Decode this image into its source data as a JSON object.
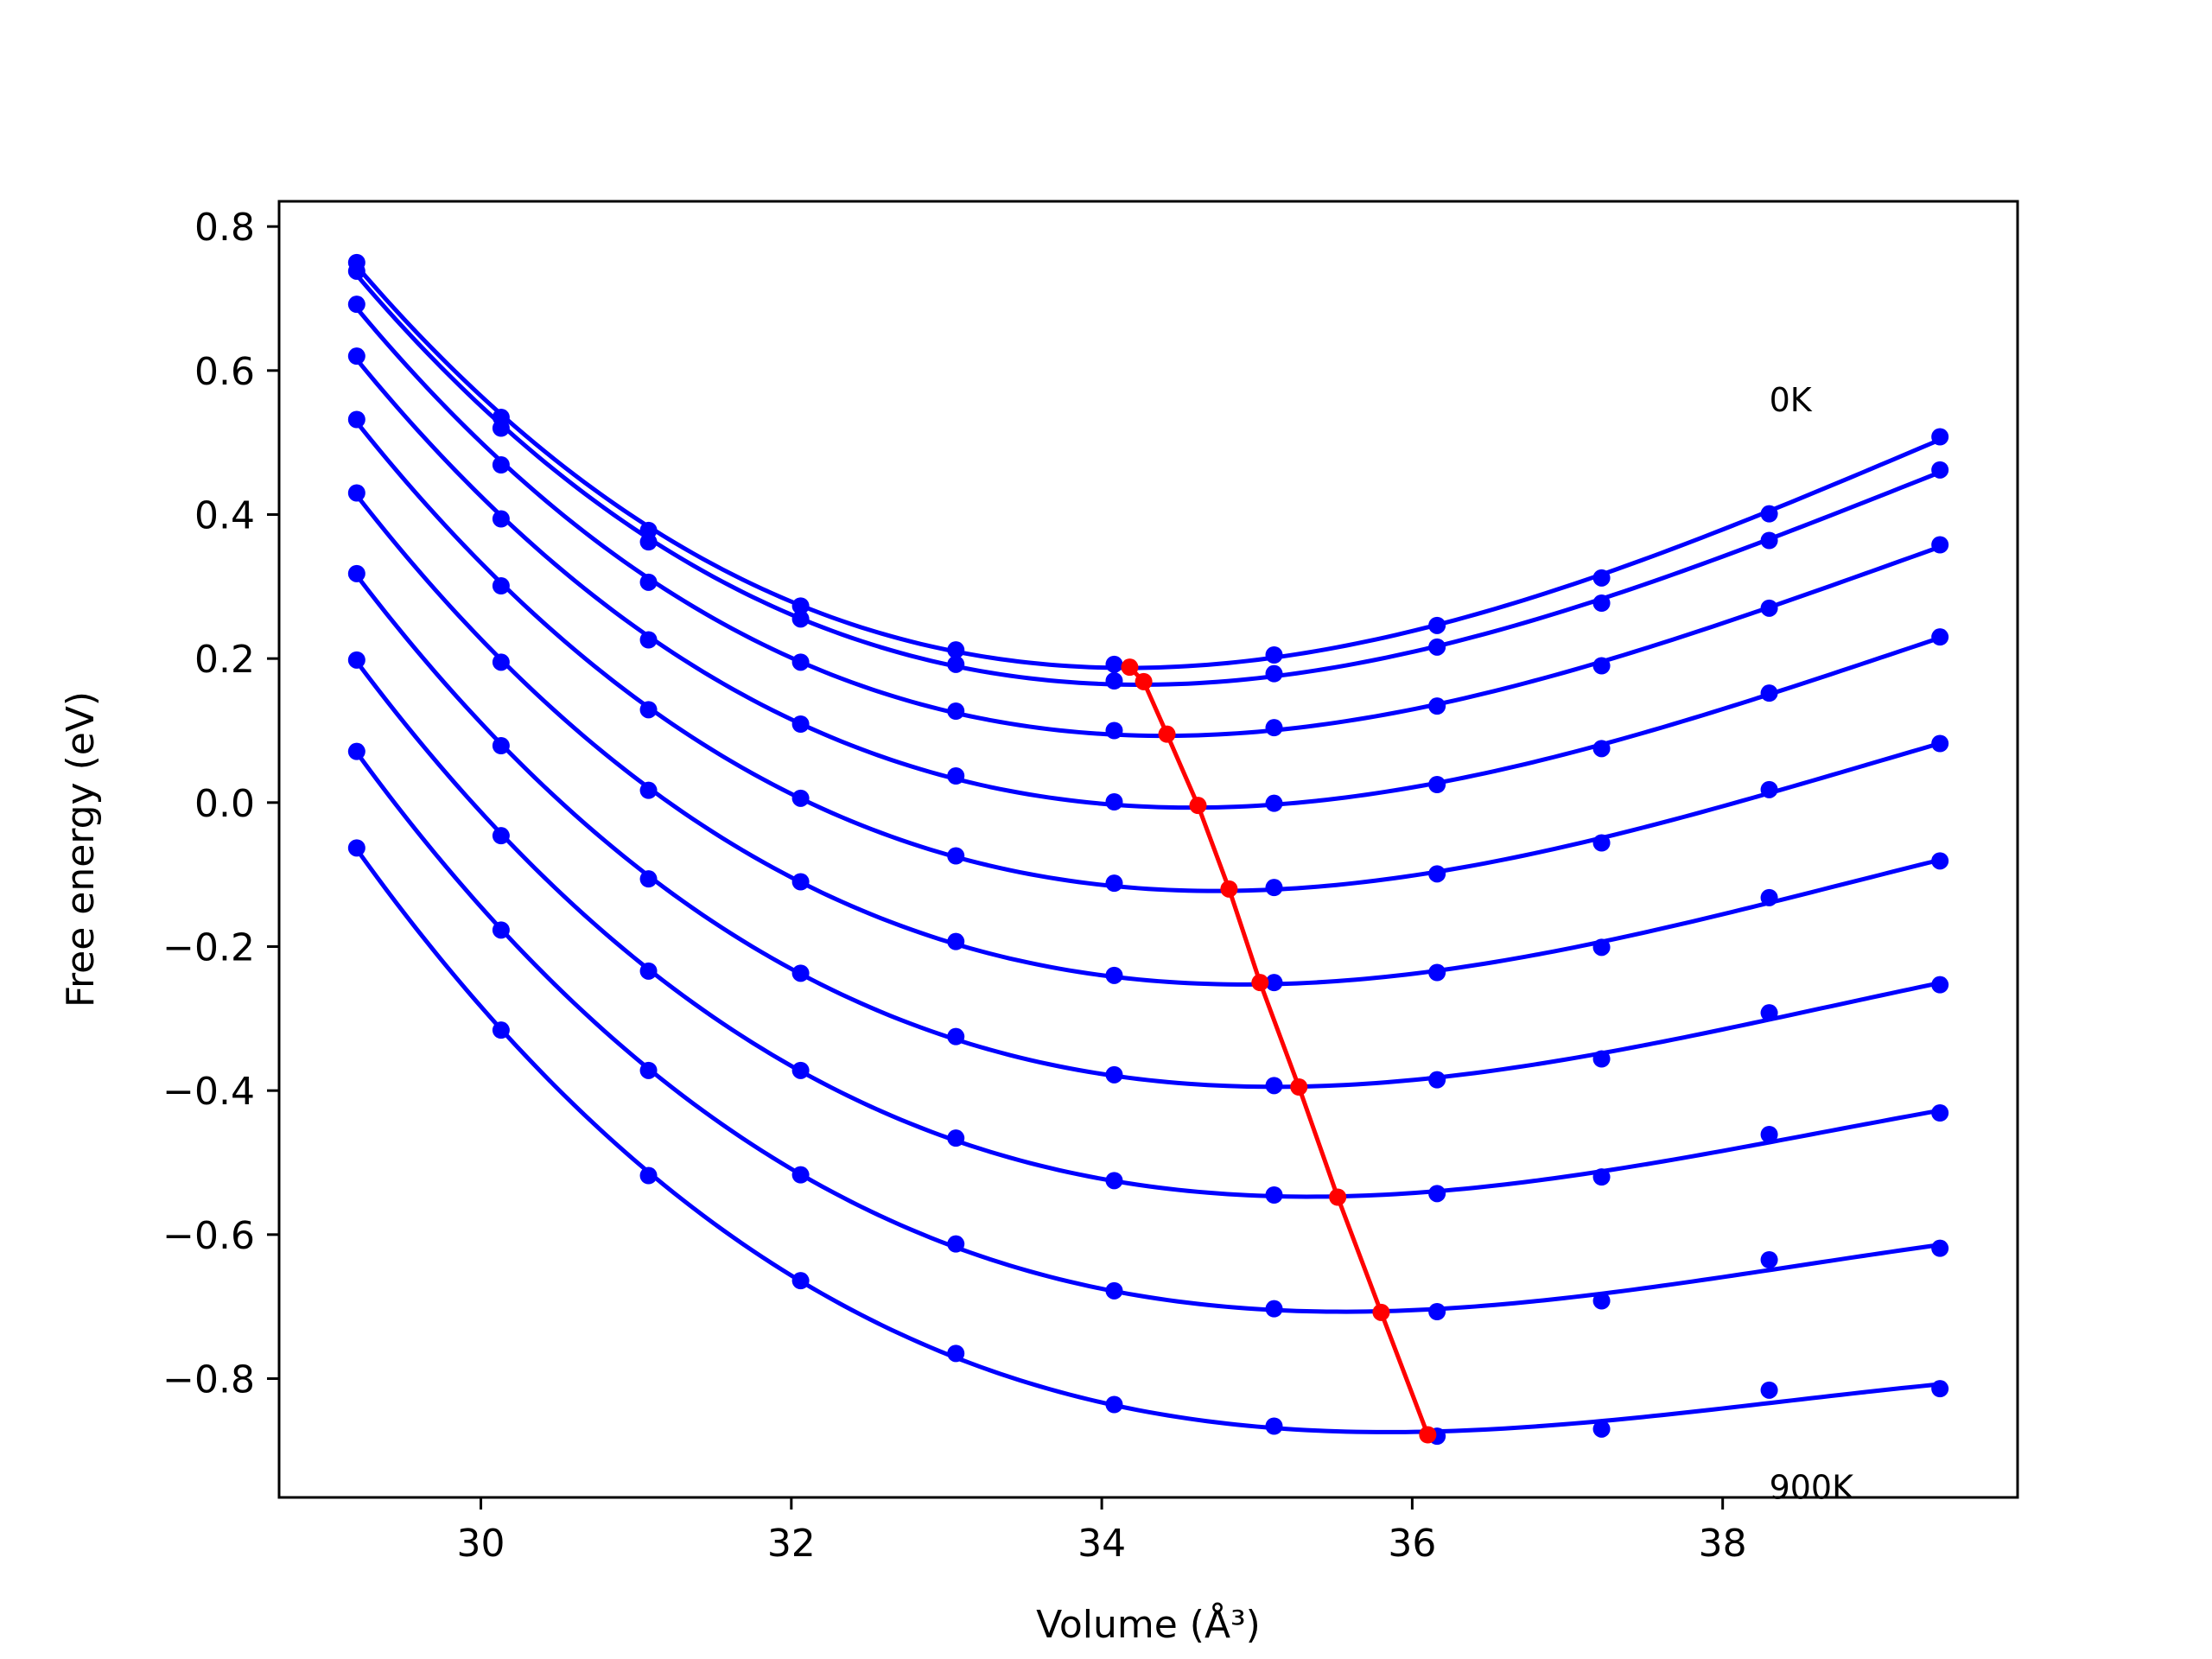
{
  "chart_data": {
    "type": "line",
    "title": "",
    "xlabel": "Volume (Å³)",
    "ylabel": "Free energy (eV)",
    "xlim": [
      28.7,
      39.9
    ],
    "ylim": [
      -0.965,
      0.835
    ],
    "xticks": [
      30,
      32,
      34,
      36,
      38
    ],
    "xtick_labels": [
      "30",
      "32",
      "34",
      "36",
      "38"
    ],
    "yticks": [
      0.8,
      0.6,
      0.4,
      0.2,
      0.0,
      -0.2,
      -0.4,
      -0.6,
      -0.8
    ],
    "ytick_labels": [
      "0.8",
      "0.6",
      "0.4",
      "0.2",
      "0.0",
      "−0.2",
      "−0.4",
      "−0.6",
      "−0.8"
    ],
    "grid": false,
    "legend": "none",
    "colors": {
      "isotherm": "#0000ff",
      "minimum_path": "#ff0000",
      "axes": "#000000"
    },
    "x": [
      29.2,
      30.13,
      31.08,
      32.06,
      33.06,
      34.08,
      35.11,
      36.16,
      37.22,
      38.3,
      39.4
    ],
    "series": [
      {
        "values": [
          0.75,
          0.535,
          0.378,
          0.273,
          0.212,
          0.192,
          0.205,
          0.246,
          0.312,
          0.401,
          0.508
        ]
      },
      {
        "values": [
          0.738,
          0.52,
          0.362,
          0.255,
          0.192,
          0.169,
          0.179,
          0.216,
          0.277,
          0.364,
          0.462
        ]
      },
      {
        "values": [
          0.692,
          0.469,
          0.306,
          0.195,
          0.127,
          0.1,
          0.104,
          0.134,
          0.19,
          0.27,
          0.358
        ]
      },
      {
        "values": [
          0.62,
          0.394,
          0.226,
          0.109,
          0.037,
          0.001,
          -0.001,
          0.025,
          0.075,
          0.152,
          0.23
        ]
      },
      {
        "values": [
          0.532,
          0.301,
          0.129,
          0.006,
          -0.074,
          -0.112,
          -0.118,
          -0.099,
          -0.056,
          0.018,
          0.082
        ]
      },
      {
        "values": [
          0.43,
          0.195,
          0.017,
          -0.11,
          -0.193,
          -0.24,
          -0.25,
          -0.236,
          -0.201,
          -0.132,
          -0.081
        ]
      },
      {
        "values": [
          0.318,
          0.079,
          -0.106,
          -0.237,
          -0.325,
          -0.378,
          -0.393,
          -0.385,
          -0.356,
          -0.292,
          -0.253
        ]
      },
      {
        "values": [
          0.198,
          -0.046,
          -0.234,
          -0.372,
          -0.466,
          -0.525,
          -0.545,
          -0.543,
          -0.52,
          -0.461,
          -0.431
        ]
      },
      {
        "values": [
          0.071,
          -0.177,
          -0.372,
          -0.517,
          -0.613,
          -0.678,
          -0.703,
          -0.707,
          -0.692,
          -0.635,
          -0.619
        ]
      },
      {
        "values": [
          -0.063,
          -0.316,
          -0.518,
          -0.664,
          -0.765,
          -0.836,
          -0.866,
          -0.88,
          -0.87,
          -0.816,
          -0.814
        ]
      }
    ],
    "minimum_path": {
      "x": [
        34.18,
        34.27,
        34.42,
        34.62,
        34.82,
        35.02,
        35.27,
        35.52,
        35.8,
        36.1
      ],
      "y": [
        0.188,
        0.168,
        0.095,
        -0.004,
        -0.12,
        -0.25,
        -0.395,
        -0.548,
        -0.708,
        -0.878
      ]
    },
    "annotations": [
      {
        "text": "0K",
        "x": 38.3,
        "y": 0.56
      },
      {
        "text": "900K",
        "x": 38.3,
        "y": -0.95
      }
    ]
  }
}
